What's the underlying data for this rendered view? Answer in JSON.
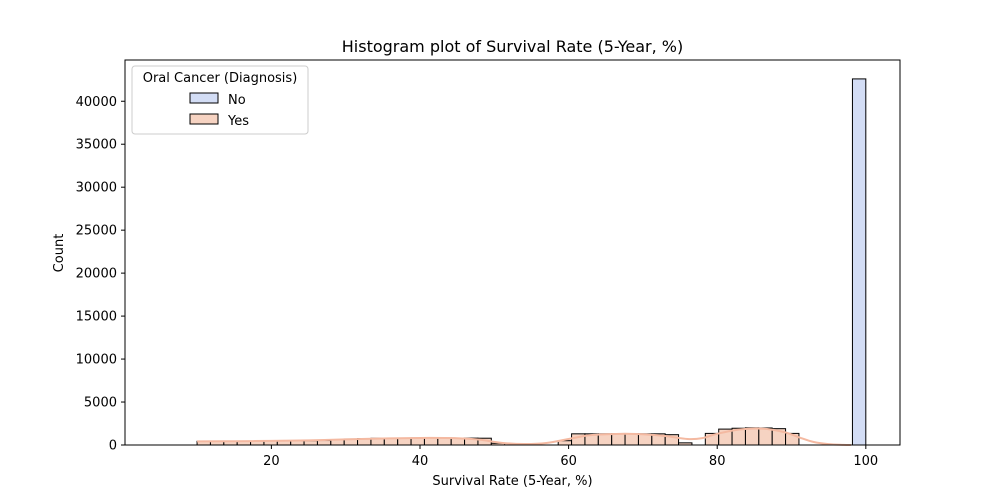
{
  "chart_data": {
    "type": "bar",
    "title": "Histogram plot of Survival Rate (5-Year, %)",
    "xlabel": "Survival Rate (5-Year, %)",
    "ylabel": "Count",
    "xlim": [
      0.3,
      104.6
    ],
    "ylim": [
      0,
      44800
    ],
    "xticks": [
      20,
      40,
      60,
      80,
      100
    ],
    "yticks": [
      0,
      5000,
      10000,
      15000,
      20000,
      25000,
      30000,
      35000,
      40000
    ],
    "grid": false,
    "bin_width": 1.8,
    "legend": {
      "title": "Oral Cancer (Diagnosis)",
      "placement": "upper-left",
      "entries": [
        "No",
        "Yes"
      ]
    },
    "series": [
      {
        "name": "Yes",
        "color": "#f6d3c2",
        "kde_color": "#f4b9a1",
        "bins": [
          {
            "x0": 10.0,
            "x1": 11.8,
            "y": 430
          },
          {
            "x0": 11.8,
            "x1": 13.6,
            "y": 440
          },
          {
            "x0": 13.6,
            "x1": 15.4,
            "y": 440
          },
          {
            "x0": 15.4,
            "x1": 17.2,
            "y": 450
          },
          {
            "x0": 17.2,
            "x1": 19.0,
            "y": 460
          },
          {
            "x0": 19.0,
            "x1": 20.8,
            "y": 470
          },
          {
            "x0": 20.8,
            "x1": 22.6,
            "y": 480
          },
          {
            "x0": 22.6,
            "x1": 24.4,
            "y": 490
          },
          {
            "x0": 24.4,
            "x1": 26.2,
            "y": 500
          },
          {
            "x0": 26.2,
            "x1": 28.0,
            "y": 520
          },
          {
            "x0": 28.0,
            "x1": 29.8,
            "y": 640
          },
          {
            "x0": 29.8,
            "x1": 31.6,
            "y": 700
          },
          {
            "x0": 31.6,
            "x1": 33.4,
            "y": 750
          },
          {
            "x0": 33.4,
            "x1": 35.2,
            "y": 780
          },
          {
            "x0": 35.2,
            "x1": 37.0,
            "y": 800
          },
          {
            "x0": 37.0,
            "x1": 38.8,
            "y": 810
          },
          {
            "x0": 38.8,
            "x1": 40.6,
            "y": 820
          },
          {
            "x0": 40.6,
            "x1": 42.4,
            "y": 820
          },
          {
            "x0": 42.4,
            "x1": 44.2,
            "y": 820
          },
          {
            "x0": 44.2,
            "x1": 46.0,
            "y": 810
          },
          {
            "x0": 46.0,
            "x1": 47.8,
            "y": 800
          },
          {
            "x0": 47.8,
            "x1": 49.6,
            "y": 790
          },
          {
            "x0": 49.6,
            "x1": 51.4,
            "y": 200
          },
          {
            "x0": 58.6,
            "x1": 60.4,
            "y": 500
          },
          {
            "x0": 60.4,
            "x1": 62.2,
            "y": 1300
          },
          {
            "x0": 62.2,
            "x1": 64.0,
            "y": 1300
          },
          {
            "x0": 64.0,
            "x1": 65.8,
            "y": 1300
          },
          {
            "x0": 65.8,
            "x1": 67.6,
            "y": 1300
          },
          {
            "x0": 67.6,
            "x1": 69.4,
            "y": 1300
          },
          {
            "x0": 69.4,
            "x1": 71.2,
            "y": 1300
          },
          {
            "x0": 71.2,
            "x1": 73.0,
            "y": 1300
          },
          {
            "x0": 73.0,
            "x1": 74.8,
            "y": 1200
          },
          {
            "x0": 74.8,
            "x1": 76.6,
            "y": 250
          },
          {
            "x0": 78.4,
            "x1": 80.2,
            "y": 1350
          },
          {
            "x0": 80.2,
            "x1": 82.0,
            "y": 1850
          },
          {
            "x0": 82.0,
            "x1": 83.8,
            "y": 1950
          },
          {
            "x0": 83.8,
            "x1": 85.6,
            "y": 2000
          },
          {
            "x0": 85.6,
            "x1": 87.4,
            "y": 1980
          },
          {
            "x0": 87.4,
            "x1": 89.2,
            "y": 1900
          },
          {
            "x0": 89.2,
            "x1": 91.0,
            "y": 1350
          }
        ],
        "kde": [
          [
            10,
            420
          ],
          [
            15,
            440
          ],
          [
            20,
            480
          ],
          [
            25,
            540
          ],
          [
            30,
            650
          ],
          [
            35,
            760
          ],
          [
            40,
            820
          ],
          [
            45,
            790
          ],
          [
            48,
            620
          ],
          [
            51,
            250
          ],
          [
            54,
            110
          ],
          [
            57,
            230
          ],
          [
            60,
            700
          ],
          [
            63,
            1150
          ],
          [
            67,
            1300
          ],
          [
            70,
            1250
          ],
          [
            73,
            1050
          ],
          [
            76,
            700
          ],
          [
            78,
            800
          ],
          [
            80,
            1300
          ],
          [
            83,
            1800
          ],
          [
            86,
            1900
          ],
          [
            89,
            1500
          ],
          [
            91,
            900
          ],
          [
            93,
            350
          ],
          [
            95,
            100
          ],
          [
            97,
            20
          ],
          [
            98,
            0
          ]
        ]
      },
      {
        "name": "No",
        "color": "#d3ddf5",
        "bins": [
          {
            "x0": 98.2,
            "x1": 100.0,
            "y": 42600
          }
        ]
      }
    ]
  }
}
